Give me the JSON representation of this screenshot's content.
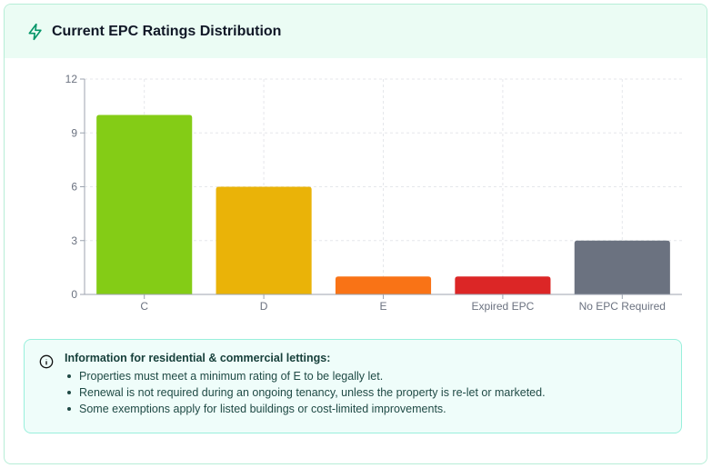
{
  "header": {
    "title": "Current EPC Ratings Distribution",
    "icon": "lightning-icon"
  },
  "chart_data": {
    "type": "bar",
    "categories": [
      "C",
      "D",
      "E",
      "Expired EPC",
      "No EPC Required"
    ],
    "values": [
      10,
      6,
      1,
      1,
      3
    ],
    "colors": [
      "#84cc16",
      "#eab308",
      "#f97316",
      "#dc2626",
      "#6b7280"
    ],
    "yticks": [
      0,
      3,
      6,
      9,
      12
    ],
    "ylim": [
      0,
      12
    ],
    "grid": true
  },
  "info": {
    "icon": "info-icon",
    "heading": "Information for residential & commercial lettings:",
    "items": [
      "Properties must meet a minimum rating of E to be legally let.",
      "Renewal is not required during an ongoing tenancy, unless the property is re-let or marketed.",
      "Some exemptions apply for listed buildings or cost-limited improvements."
    ]
  }
}
